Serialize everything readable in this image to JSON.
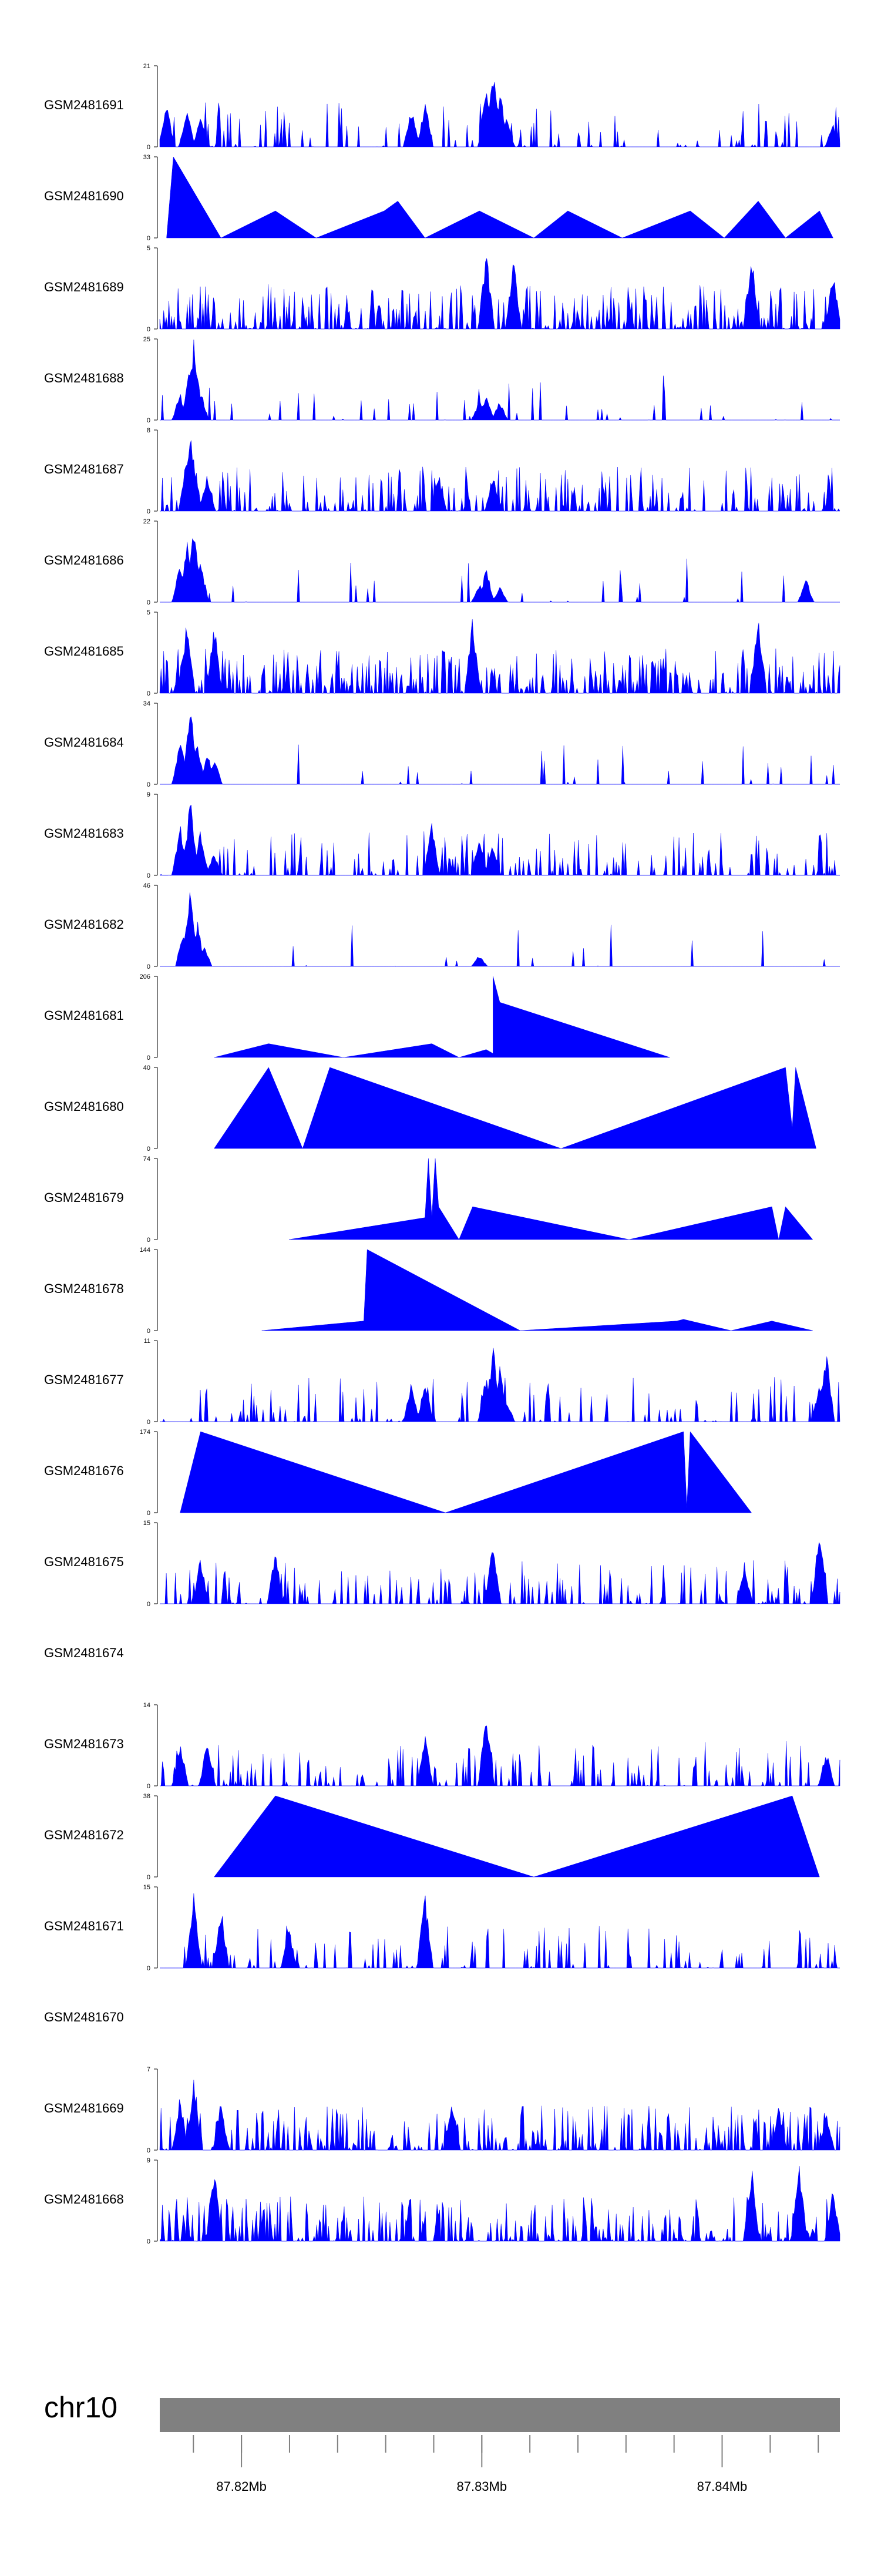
{
  "chart_data": {
    "type": "area",
    "title": "",
    "xlabel": "",
    "ylabel": "",
    "color": "#0000ff",
    "chromosome": "chr10",
    "genome_axis": {
      "range_mb": [
        87.8166,
        87.8449
      ],
      "ticks": [
        {
          "value": 87.82,
          "label": "87.82Mb"
        },
        {
          "value": 87.83,
          "label": "87.83Mb"
        },
        {
          "value": 87.84,
          "label": "87.84Mb"
        }
      ]
    },
    "tracks": [
      {
        "name": "GSM2481691",
        "ymax": 21,
        "ymin": 0
      },
      {
        "name": "GSM2481690",
        "ymax": 33,
        "ymin": 0
      },
      {
        "name": "GSM2481689",
        "ymax": 5,
        "ymin": 0
      },
      {
        "name": "GSM2481688",
        "ymax": 25,
        "ymin": 0
      },
      {
        "name": "GSM2481687",
        "ymax": 8,
        "ymin": 0
      },
      {
        "name": "GSM2481686",
        "ymax": 22,
        "ymin": 0
      },
      {
        "name": "GSM2481685",
        "ymax": 5,
        "ymin": 0
      },
      {
        "name": "GSM2481684",
        "ymax": 34,
        "ymin": 0
      },
      {
        "name": "GSM2481683",
        "ymax": 9,
        "ymin": 0
      },
      {
        "name": "GSM2481682",
        "ymax": 46,
        "ymin": 0
      },
      {
        "name": "GSM2481681",
        "ymax": 206,
        "ymin": 0
      },
      {
        "name": "GSM2481680",
        "ymax": 40,
        "ymin": 0
      },
      {
        "name": "GSM2481679",
        "ymax": 74,
        "ymin": 0
      },
      {
        "name": "GSM2481678",
        "ymax": 144,
        "ymin": 0
      },
      {
        "name": "GSM2481677",
        "ymax": 11,
        "ymin": 0
      },
      {
        "name": "GSM2481676",
        "ymax": 174,
        "ymin": 0
      },
      {
        "name": "GSM2481675",
        "ymax": 15,
        "ymin": 0
      },
      {
        "name": "GSM2481674",
        "ymax": null,
        "ymin": null
      },
      {
        "name": "GSM2481673",
        "ymax": 14,
        "ymin": 0
      },
      {
        "name": "GSM2481672",
        "ymax": 38,
        "ymin": 0
      },
      {
        "name": "GSM2481671",
        "ymax": 15,
        "ymin": 0
      },
      {
        "name": "GSM2481670",
        "ymax": null,
        "ymin": null
      },
      {
        "name": "GSM2481669",
        "ymax": 7,
        "ymin": 0
      },
      {
        "name": "GSM2481668",
        "ymax": 9,
        "ymin": 0
      }
    ],
    "coverage_profiles": {
      "GSM2481690": [
        [
          0.01,
          0
        ],
        [
          0.02,
          33
        ],
        [
          0.09,
          0
        ],
        [
          0.17,
          11
        ],
        [
          0.23,
          0
        ],
        [
          0.33,
          11
        ],
        [
          0.35,
          15
        ],
        [
          0.39,
          0
        ],
        [
          0.47,
          11
        ],
        [
          0.55,
          0
        ],
        [
          0.6,
          11
        ],
        [
          0.68,
          0
        ],
        [
          0.78,
          11
        ],
        [
          0.83,
          0
        ],
        [
          0.88,
          15
        ],
        [
          0.92,
          0
        ],
        [
          0.97,
          11
        ],
        [
          0.99,
          0
        ]
      ],
      "GSM2481681": [
        [
          0.08,
          0
        ],
        [
          0.16,
          35
        ],
        [
          0.27,
          0
        ],
        [
          0.4,
          35
        ],
        [
          0.44,
          0
        ],
        [
          0.48,
          20
        ],
        [
          0.49,
          10
        ],
        [
          0.49,
          206
        ],
        [
          0.5,
          140
        ],
        [
          0.75,
          0
        ]
      ],
      "GSM2481680": [
        [
          0.08,
          0
        ],
        [
          0.16,
          40
        ],
        [
          0.21,
          0
        ],
        [
          0.25,
          40
        ],
        [
          0.59,
          0
        ],
        [
          0.92,
          40
        ],
        [
          0.93,
          10
        ],
        [
          0.935,
          40
        ],
        [
          0.965,
          0
        ]
      ],
      "GSM2481679": [
        [
          0.19,
          0
        ],
        [
          0.39,
          20
        ],
        [
          0.395,
          74
        ],
        [
          0.4,
          20
        ],
        [
          0.405,
          74
        ],
        [
          0.41,
          30
        ],
        [
          0.44,
          0
        ],
        [
          0.46,
          30
        ],
        [
          0.69,
          0
        ],
        [
          0.9,
          30
        ],
        [
          0.91,
          0
        ],
        [
          0.92,
          30
        ],
        [
          0.96,
          0
        ]
      ],
      "GSM2481678": [
        [
          0.15,
          0
        ],
        [
          0.3,
          17
        ],
        [
          0.305,
          144
        ],
        [
          0.53,
          0
        ],
        [
          0.76,
          17
        ],
        [
          0.77,
          20
        ],
        [
          0.84,
          0
        ],
        [
          0.9,
          17
        ],
        [
          0.96,
          0
        ]
      ],
      "GSM2481676": [
        [
          0.03,
          0
        ],
        [
          0.06,
          174
        ],
        [
          0.42,
          0
        ],
        [
          0.77,
          174
        ],
        [
          0.775,
          10
        ],
        [
          0.78,
          174
        ],
        [
          0.87,
          0
        ]
      ],
      "GSM2481672": [
        [
          0.08,
          0
        ],
        [
          0.17,
          38
        ],
        [
          0.55,
          0
        ],
        [
          0.93,
          38
        ],
        [
          0.97,
          0
        ]
      ]
    },
    "noise_profiles": {
      "GSM2481691": {
        "peaks": [
          [
            0.01,
            0.6
          ],
          [
            0.04,
            0.5
          ],
          [
            0.06,
            0.4
          ],
          [
            0.37,
            0.5
          ],
          [
            0.39,
            0.6
          ],
          [
            0.48,
            0.8
          ],
          [
            0.49,
            1.0
          ],
          [
            0.5,
            0.75
          ],
          [
            0.51,
            0.4
          ],
          [
            0.99,
            0.3
          ]
        ],
        "density": 0.18
      },
      "GSM2481689": {
        "peaks": [
          [
            0.48,
            1.0
          ],
          [
            0.52,
            0.9
          ],
          [
            0.87,
            1.0
          ],
          [
            0.99,
            0.8
          ]
        ],
        "density": 0.55
      },
      "GSM2481688": {
        "peaks": [
          [
            0.03,
            0.35
          ],
          [
            0.045,
            0.8
          ],
          [
            0.05,
            1.0
          ],
          [
            0.055,
            0.6
          ],
          [
            0.06,
            0.4
          ],
          [
            0.47,
            0.25
          ],
          [
            0.48,
            0.3
          ],
          [
            0.5,
            0.25
          ]
        ],
        "density": 0.08
      },
      "GSM2481687": {
        "peaks": [
          [
            0.04,
            0.8
          ],
          [
            0.045,
            1.0
          ],
          [
            0.05,
            0.7
          ],
          [
            0.07,
            0.5
          ],
          [
            0.41,
            0.5
          ],
          [
            0.49,
            0.5
          ]
        ],
        "density": 0.35
      },
      "GSM2481686": {
        "peaks": [
          [
            0.03,
            0.5
          ],
          [
            0.04,
            0.8
          ],
          [
            0.05,
            1.0
          ],
          [
            0.06,
            0.5
          ],
          [
            0.47,
            0.25
          ],
          [
            0.48,
            0.45
          ],
          [
            0.5,
            0.2
          ],
          [
            0.95,
            0.3
          ]
        ],
        "density": 0.07
      },
      "GSM2481685": {
        "peaks": [
          [
            0.04,
            1.0
          ],
          [
            0.08,
            0.9
          ],
          [
            0.46,
            1.0
          ],
          [
            0.88,
            1.0
          ]
        ],
        "density": 0.6
      },
      "GSM2481684": {
        "peaks": [
          [
            0.03,
            0.6
          ],
          [
            0.045,
            1.0
          ],
          [
            0.055,
            0.6
          ],
          [
            0.07,
            0.4
          ],
          [
            0.08,
            0.35
          ]
        ],
        "density": 0.05
      },
      "GSM2481683": {
        "peaks": [
          [
            0.03,
            0.7
          ],
          [
            0.045,
            1.0
          ],
          [
            0.06,
            0.6
          ],
          [
            0.08,
            0.3
          ],
          [
            0.4,
            0.7
          ],
          [
            0.47,
            0.5
          ],
          [
            0.49,
            0.4
          ]
        ],
        "density": 0.3
      },
      "GSM2481682": {
        "peaks": [
          [
            0.035,
            0.5
          ],
          [
            0.045,
            1.0
          ],
          [
            0.055,
            0.6
          ],
          [
            0.065,
            0.3
          ],
          [
            0.47,
            0.15
          ]
        ],
        "density": 0.04
      },
      "GSM2481677": {
        "peaks": [
          [
            0.37,
            0.5
          ],
          [
            0.39,
            0.55
          ],
          [
            0.48,
            0.6
          ],
          [
            0.49,
            1.0
          ],
          [
            0.5,
            0.7
          ],
          [
            0.51,
            0.3
          ],
          [
            0.97,
            0.5
          ],
          [
            0.98,
            0.95
          ]
        ],
        "density": 0.2
      },
      "GSM2481675": {
        "peaks": [
          [
            0.06,
            0.6
          ],
          [
            0.17,
            0.7
          ],
          [
            0.49,
            0.8
          ],
          [
            0.86,
            0.5
          ],
          [
            0.97,
            1.0
          ]
        ],
        "density": 0.32
      },
      "GSM2481673": {
        "peaks": [
          [
            0.03,
            0.6
          ],
          [
            0.07,
            0.6
          ],
          [
            0.39,
            0.7
          ],
          [
            0.48,
            1.0
          ],
          [
            0.98,
            0.45
          ]
        ],
        "density": 0.28
      },
      "GSM2481671": {
        "peaks": [
          [
            0.05,
            1.0
          ],
          [
            0.09,
            0.8
          ],
          [
            0.19,
            0.5
          ],
          [
            0.39,
            1.0
          ]
        ],
        "density": 0.22
      },
      "GSM2481669": {
        "peaks": [
          [
            0.03,
            0.7
          ],
          [
            0.05,
            1.0
          ],
          [
            0.09,
            0.6
          ],
          [
            0.43,
            0.6
          ],
          [
            0.91,
            0.6
          ],
          [
            0.98,
            0.5
          ]
        ],
        "density": 0.5
      },
      "GSM2481668": {
        "peaks": [
          [
            0.08,
            1.0
          ],
          [
            0.87,
            1.0
          ],
          [
            0.94,
            1.0
          ],
          [
            0.99,
            0.7
          ]
        ],
        "density": 0.5
      }
    }
  }
}
